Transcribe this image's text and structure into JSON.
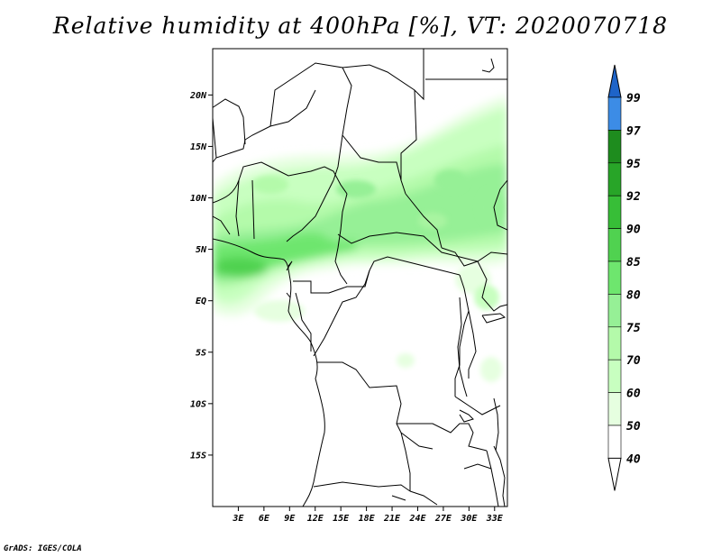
{
  "title": "Relative humidity at 400hPa [%], VT: 2020070718",
  "credit": "GrADS: IGES/COLA",
  "map": {
    "lon_range": [
      0,
      34.5
    ],
    "lat_range": [
      -20,
      24.5
    ],
    "lat_ticks": [
      {
        "value": 20,
        "label": "20N"
      },
      {
        "value": 15,
        "label": "15N"
      },
      {
        "value": 10,
        "label": "10N"
      },
      {
        "value": 5,
        "label": "5N"
      },
      {
        "value": 0,
        "label": "EQ"
      },
      {
        "value": -5,
        "label": "5S"
      },
      {
        "value": -10,
        "label": "10S"
      },
      {
        "value": -15,
        "label": "15S"
      }
    ],
    "lon_ticks": [
      {
        "value": 3,
        "label": "3E"
      },
      {
        "value": 6,
        "label": "6E"
      },
      {
        "value": 9,
        "label": "9E"
      },
      {
        "value": 12,
        "label": "12E"
      },
      {
        "value": 15,
        "label": "15E"
      },
      {
        "value": 18,
        "label": "18E"
      },
      {
        "value": 21,
        "label": "21E"
      },
      {
        "value": 24,
        "label": "24E"
      },
      {
        "value": 27,
        "label": "27E"
      },
      {
        "value": 30,
        "label": "30E"
      },
      {
        "value": 33,
        "label": "33E"
      }
    ]
  },
  "colorbar": {
    "levels": [
      {
        "label": "99",
        "color": "#1e64c8"
      },
      {
        "label": "97",
        "color": "#3c8ce6"
      },
      {
        "label": "95",
        "color": "#1e8c1e"
      },
      {
        "label": "92",
        "color": "#28a528"
      },
      {
        "label": "90",
        "color": "#37be37"
      },
      {
        "label": "85",
        "color": "#50d250"
      },
      {
        "label": "80",
        "color": "#6ee66e"
      },
      {
        "label": "75",
        "color": "#96f096"
      },
      {
        "label": "70",
        "color": "#b4faaa"
      },
      {
        "label": "60",
        "color": "#c8ffc0"
      },
      {
        "label": "50",
        "color": "#e6ffe0"
      },
      {
        "label": "40",
        "color": "#ffffff"
      }
    ],
    "top_arrow_color": "#1e64c8",
    "bottom_arrow_color": "#ffffff"
  }
}
